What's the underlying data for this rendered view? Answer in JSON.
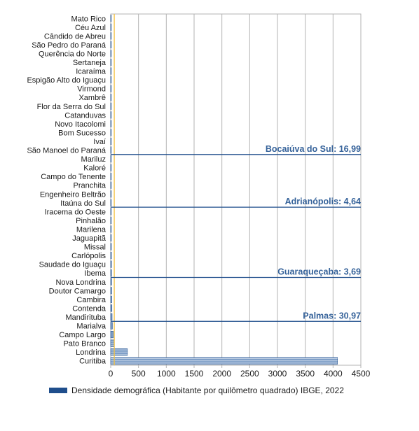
{
  "chart_data": {
    "type": "bar",
    "orientation": "horizontal",
    "xlim": [
      0,
      4500
    ],
    "x_ticks": [
      "0",
      "500",
      "1000",
      "1500",
      "2000",
      "2500",
      "3000",
      "3500",
      "4000",
      "4500"
    ],
    "grid": true,
    "reference_line_x": 64,
    "legend_position": "bottom",
    "series": [
      {
        "name": "Densidade demográfica (Habitante por quilômetro quadrado) IBGE, 2022"
      }
    ],
    "categories": [
      "Mato Rico",
      "Céu Azul",
      "Cândido de Abreu",
      "São Pedro do Paraná",
      "Querência do Norte",
      "Sertaneja",
      "Icaraíma",
      "Espigão Alto do Iguaçu",
      "Virmond",
      "Xambrê",
      "Flor da Serra do Sul",
      "Catanduvas",
      "Novo Itacolomi",
      "Bom Sucesso",
      "Ivaí",
      "São Manoel do Paraná",
      "Mariluz",
      "Kaloré",
      "Campo do Tenente",
      "Pranchita",
      "Engenheiro Beltrão",
      "Itaúna do Sul",
      "Iracema do Oeste",
      "Pinhalão",
      "Marilena",
      "Jaguapitã",
      "Missal",
      "Carlópolis",
      "Saudade do Iguaçu",
      "Ibema",
      "Nova Londrina",
      "Doutor Camargo",
      "Cambira",
      "Contenda",
      "Mandirituba",
      "Marialva",
      "Campo Largo",
      "Pato Branco",
      "Londrina",
      "Curitiba"
    ],
    "values": [
      1,
      1,
      1,
      1,
      2,
      2,
      2,
      2,
      3,
      3,
      3,
      3,
      4,
      4,
      5,
      5,
      6,
      6,
      7,
      7,
      8,
      8,
      9,
      10,
      10,
      11,
      12,
      13,
      14,
      15,
      16,
      17,
      19,
      22,
      25,
      30,
      45,
      60,
      300,
      4080
    ],
    "annotations": [
      {
        "label": "Bocaiúva do Sul: 16,99",
        "value": 16.99,
        "after_index": 15
      },
      {
        "label": "Adrianópolis: 4,64",
        "value": 4.64,
        "after_index": 21
      },
      {
        "label": "Guaraqueçaba: 3,69",
        "value": 3.69,
        "after_index": 29
      },
      {
        "label": "Palmas: 30,97",
        "value": 30.97,
        "after_index": 34
      }
    ],
    "colors": {
      "bar": "#7f9fc8",
      "bar_edge": "#1f4e8c",
      "annotation_line": "#1f4e8c",
      "annotation_text": "#35629a",
      "reference_line": "#f2c040",
      "grid": "#b3b3b3",
      "legend_swatch": "#1f4e8c"
    }
  }
}
